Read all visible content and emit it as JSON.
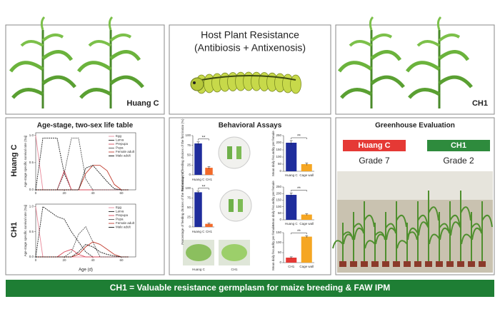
{
  "header": {
    "left_label": "Huang C",
    "title": "Host Plant Resistance",
    "subtitle": "(Antibiosis + Antixenosis)",
    "right_label": "CH1"
  },
  "life_table": {
    "title": "Age-stage, two-sex life table",
    "row_labels": [
      "Huang C",
      "CH1"
    ]
  },
  "behavior": {
    "title": "Behavioral Assays",
    "photo_labels": [
      "Huang C",
      "CH1"
    ]
  },
  "greenhouse": {
    "title": "Greenhouse Evaluation",
    "entries": [
      {
        "name": "Huang C",
        "grade": "Grade 7",
        "color": "#e53935"
      },
      {
        "name": "CH1",
        "grade": "Grade 2",
        "color": "#2e8b3d"
      }
    ]
  },
  "banner": "CH1 = Valuable resistance germplasm for maize breeding & FAW IPM",
  "chart_data": [
    {
      "type": "line",
      "y_label": "Age-stage specific survival rate (Sxj)",
      "x": [
        0,
        5,
        10,
        15,
        20,
        25,
        30,
        35,
        40,
        45,
        50,
        55,
        60,
        65
      ],
      "xlim": [
        0,
        70
      ],
      "xticks": [
        0,
        20,
        40,
        60
      ],
      "ylim": [
        0,
        1.05
      ],
      "yticks": [
        {
          "value": 0,
          "label": "0.0"
        },
        {
          "value": 0.5,
          "label": "0.5"
        },
        {
          "value": 1,
          "label": "1.0"
        }
      ],
      "legend": "upper right",
      "series": [
        {
          "name": "Egg",
          "color": "#e8899a",
          "values": [
            1,
            0,
            0,
            0,
            0,
            0,
            0,
            0,
            0,
            0,
            0,
            0,
            0,
            0
          ]
        },
        {
          "name": "Larva",
          "color": "#222222",
          "values": [
            0,
            0.95,
            0.95,
            0.95,
            0.3,
            0,
            0,
            0,
            0,
            0,
            0,
            0,
            0,
            0
          ]
        },
        {
          "name": "Prepupa",
          "color": "#d9475a",
          "values": [
            0,
            0,
            0,
            0,
            0.35,
            0,
            0,
            0,
            0,
            0,
            0,
            0,
            0,
            0
          ]
        },
        {
          "name": "Pupa",
          "color": "#555555",
          "values": [
            0,
            0,
            0,
            0,
            0.3,
            0.95,
            0.95,
            0.2,
            0,
            0,
            0,
            0,
            0,
            0
          ]
        },
        {
          "name": "Female adult",
          "color": "#c0392b",
          "values": [
            0,
            0,
            0,
            0,
            0,
            0,
            0,
            0.3,
            0.45,
            0.45,
            0.35,
            0.1,
            0,
            0
          ]
        },
        {
          "name": "Male adult",
          "color": "#111111",
          "values": [
            0,
            0,
            0,
            0,
            0,
            0,
            0,
            0.4,
            0.45,
            0.3,
            0.15,
            0.02,
            0,
            0
          ]
        }
      ]
    },
    {
      "type": "line",
      "y_label": "Age-stage specific survival rate (Sxj)",
      "x_label": "Age (d)",
      "x": [
        0,
        5,
        10,
        15,
        20,
        25,
        30,
        35,
        40,
        45,
        50,
        55,
        60,
        65
      ],
      "xlim": [
        0,
        70
      ],
      "xticks": [
        0,
        20,
        40,
        60
      ],
      "ylim": [
        0,
        1.05
      ],
      "yticks": [
        {
          "value": 0,
          "label": "0.0"
        },
        {
          "value": 0.5,
          "label": "0.5"
        },
        {
          "value": 1,
          "label": "1.0"
        }
      ],
      "legend": "upper right",
      "series": [
        {
          "name": "Egg",
          "color": "#e8899a",
          "values": [
            1,
            0,
            0,
            0,
            0,
            0,
            0,
            0,
            0,
            0,
            0,
            0,
            0,
            0
          ]
        },
        {
          "name": "Larva",
          "color": "#222222",
          "values": [
            0,
            1,
            0.9,
            0.8,
            0.75,
            0.5,
            0.3,
            0.1,
            0,
            0,
            0,
            0,
            0,
            0
          ]
        },
        {
          "name": "Prepupa",
          "color": "#d9475a",
          "values": [
            0,
            0,
            0,
            0,
            0.1,
            0.15,
            0.05,
            0,
            0,
            0,
            0,
            0,
            0,
            0
          ]
        },
        {
          "name": "Pupa",
          "color": "#555555",
          "values": [
            0,
            0,
            0,
            0,
            0,
            0.1,
            0.45,
            0.6,
            0.3,
            0,
            0,
            0,
            0,
            0
          ]
        },
        {
          "name": "Female adult",
          "color": "#c0392b",
          "values": [
            0,
            0,
            0,
            0,
            0,
            0,
            0.05,
            0.2,
            0.3,
            0.25,
            0.15,
            0.05,
            0,
            0
          ]
        },
        {
          "name": "Male adult",
          "color": "#111111",
          "values": [
            0,
            0,
            0,
            0,
            0,
            0,
            0.1,
            0.25,
            0.2,
            0.1,
            0.05,
            0.02,
            0,
            0
          ]
        }
      ]
    },
    {
      "type": "bar",
      "y_label": "Percentage of feeding choices of the first instar (%)",
      "categories": [
        "Huang C",
        "CH1"
      ],
      "values": [
        80,
        18
      ],
      "errors": [
        4,
        3
      ],
      "colors": [
        "#1f2d9c",
        "#f26a2a"
      ],
      "ylim": [
        0,
        100
      ],
      "yticks": [
        0,
        25,
        50,
        75,
        100
      ],
      "annotation": "**"
    },
    {
      "type": "bar",
      "y_label": "Percentage of feeding choices of the third instar (%)",
      "categories": [
        "Huang C",
        "CH1"
      ],
      "values": [
        90,
        8
      ],
      "errors": [
        3,
        2
      ],
      "colors": [
        "#1f2d9c",
        "#f26a2a"
      ],
      "ylim": [
        0,
        100
      ],
      "yticks": [
        0,
        25,
        50,
        75,
        100
      ],
      "annotation": "**"
    },
    {
      "type": "bar",
      "y_label": "Mean daily fecundity per female",
      "categories": [
        "Huang C",
        "Cage wall"
      ],
      "values": [
        200,
        50
      ],
      "errors": [
        15,
        8
      ],
      "colors": [
        "#1f2d9c",
        "#f5a623"
      ],
      "ylim": [
        0,
        250
      ],
      "yticks": [
        0,
        50,
        100,
        150,
        200,
        250
      ],
      "annotation": "**"
    },
    {
      "type": "bar",
      "y_label": "Mean daily fecundity per female",
      "categories": [
        "Huang C",
        "Cage wall"
      ],
      "values": [
        190,
        40
      ],
      "errors": [
        15,
        6
      ],
      "colors": [
        "#1f2d9c",
        "#f5a623"
      ],
      "ylim": [
        0,
        250
      ],
      "yticks": [
        0,
        50,
        100,
        150,
        200,
        250
      ],
      "annotation": "**"
    },
    {
      "type": "bar",
      "y_label": "Mean daily fecundity per female",
      "categories": [
        "CH1",
        "Cage wall"
      ],
      "values": [
        25,
        130
      ],
      "errors": [
        4,
        5
      ],
      "colors": [
        "#e53935",
        "#f5a623"
      ],
      "ylim": [
        0,
        150
      ],
      "yticks": [
        0,
        50,
        100,
        150
      ],
      "annotation": "**"
    }
  ]
}
